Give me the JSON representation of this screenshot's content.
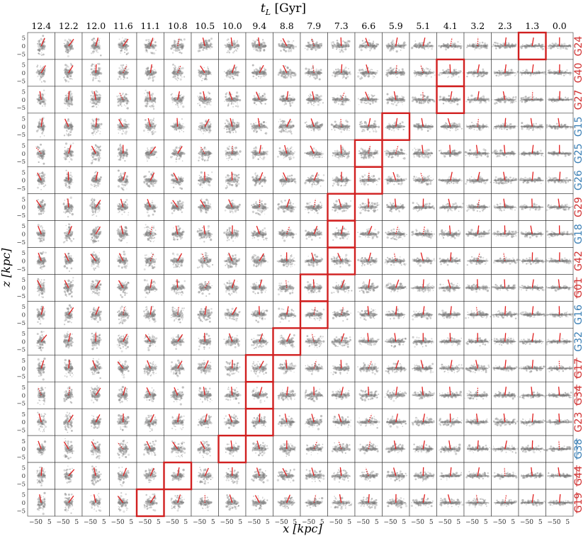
{
  "figure": {
    "top_axis_label": "t_L [Gyr]",
    "top_axis_label_sub": "L",
    "top_axis_label_unit": " [Gyr]",
    "x_axis_label": "x [kpc]",
    "y_axis_label": "z [kpc]"
  },
  "chart_data": {
    "type": "heatmap",
    "description_kind": "grid of edge-on gas projections",
    "lookback_times": [
      "12.4",
      "12.2",
      "12.0",
      "11.6",
      "11.1",
      "10.8",
      "10.5",
      "10.0",
      "9.4",
      "8.8",
      "7.9",
      "7.3",
      "6.6",
      "5.9",
      "5.1",
      "4.1",
      "3.2",
      "2.3",
      "1.3",
      "0.0"
    ],
    "y_tick_labels": [
      "5",
      "0",
      "−5"
    ],
    "x_tick_label": "−5 0 5",
    "x_tick_labels": [
      "−50",
      "5"
    ],
    "galaxies": [
      {
        "name": "G24",
        "color": "#d03030",
        "underline": false,
        "highlight": [
          18
        ]
      },
      {
        "name": "G40",
        "color": "#d03030",
        "underline": false,
        "highlight": [
          15
        ]
      },
      {
        "name": "G27",
        "color": "#d03030",
        "underline": false,
        "highlight": [
          15
        ]
      },
      {
        "name": "G15",
        "color": "#3a7fb5",
        "underline": false,
        "highlight": [
          13
        ]
      },
      {
        "name": "G25",
        "color": "#3a7fb5",
        "underline": false,
        "highlight": [
          12
        ]
      },
      {
        "name": "G26",
        "color": "#3a7fb5",
        "underline": false,
        "highlight": [
          12
        ]
      },
      {
        "name": "G29",
        "color": "#d03030",
        "underline": false,
        "highlight": [
          11
        ]
      },
      {
        "name": "G18",
        "color": "#3a7fb5",
        "underline": false,
        "highlight": [
          11
        ]
      },
      {
        "name": "G42",
        "color": "#d03030",
        "underline": false,
        "highlight": [
          11
        ]
      },
      {
        "name": "G01",
        "color": "#d03030",
        "underline": true,
        "highlight": [
          10
        ]
      },
      {
        "name": "G16",
        "color": "#3a7fb5",
        "underline": false,
        "highlight": [
          10
        ]
      },
      {
        "name": "G32",
        "color": "#3a7fb5",
        "underline": false,
        "highlight": [
          9
        ]
      },
      {
        "name": "G17",
        "color": "#d03030",
        "underline": true,
        "highlight": [
          8
        ]
      },
      {
        "name": "G34",
        "color": "#d03030",
        "underline": true,
        "highlight": [
          8
        ]
      },
      {
        "name": "G23",
        "color": "#d03030",
        "underline": false,
        "highlight": [
          8
        ]
      },
      {
        "name": "G38",
        "color": "#3a7fb5",
        "underline": true,
        "highlight": [
          7
        ]
      },
      {
        "name": "G44",
        "color": "#d03030",
        "underline": true,
        "highlight": [
          5
        ]
      },
      {
        "name": "G19",
        "color": "#d03030",
        "underline": true,
        "highlight": [
          4
        ]
      }
    ],
    "highlight_color": "#d02020",
    "spin_vector_color": "#e02020",
    "gas_color": "#8a8a8a"
  }
}
